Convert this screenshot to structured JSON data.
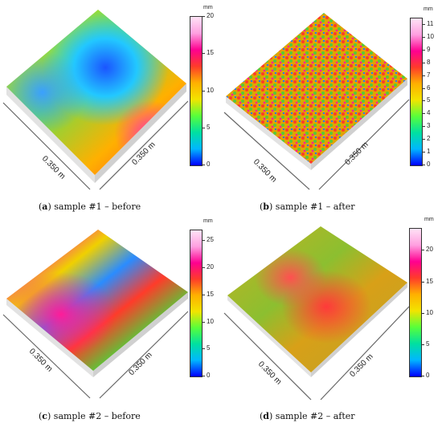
{
  "colors": {
    "scale": [
      "#0000ff",
      "#00b7ff",
      "#00e0a0",
      "#58ff3a",
      "#f2e400",
      "#ffb000",
      "#ff3b2a",
      "#ff0090",
      "#ff9fe0",
      "#ffe3f6"
    ],
    "base": "#e2e2e2",
    "arrow": "#666666"
  },
  "panels": [
    {
      "letter": "a",
      "caption": "sample #1 – before",
      "unit": "mm",
      "range": [
        0,
        20
      ],
      "ticks": [
        0,
        5,
        10,
        15,
        20
      ],
      "dim_left": "0.350 m",
      "dim_right": "0.350 m"
    },
    {
      "letter": "b",
      "caption": "sample #1 – after",
      "unit": "mm",
      "range": [
        0,
        11.5
      ],
      "ticks": [
        0,
        1,
        2,
        3,
        4,
        5,
        6,
        7,
        8,
        9,
        10,
        11
      ],
      "dim_left": "0.350 m",
      "dim_right": "0.350 m"
    },
    {
      "letter": "c",
      "caption": "sample #2 – before",
      "unit": "mm",
      "range": [
        0,
        27
      ],
      "ticks": [
        0,
        5,
        10,
        15,
        20,
        25
      ],
      "dim_left": "0.350 m",
      "dim_right": "0.350 m"
    },
    {
      "letter": "d",
      "caption": "sample #2 – after",
      "unit": "mm",
      "range": [
        0,
        23.5
      ],
      "ticks": [
        0,
        5,
        10,
        15,
        20
      ],
      "dim_left": "0.350 m",
      "dim_right": "0.350 m"
    }
  ]
}
